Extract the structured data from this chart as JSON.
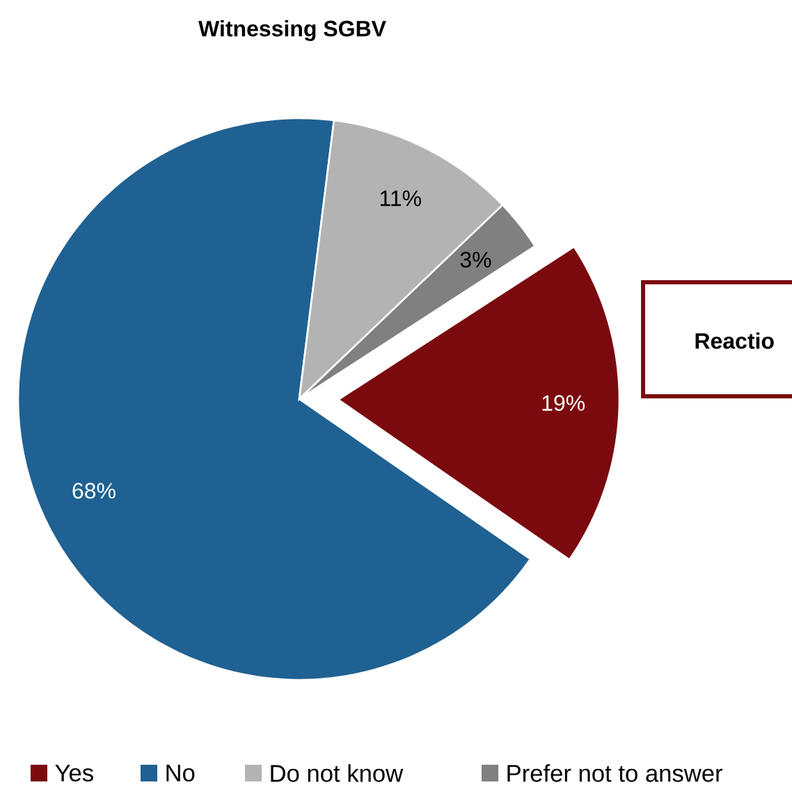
{
  "chart_data": {
    "type": "pie",
    "title": "Witnessing SGBV",
    "categories": [
      "Yes",
      "No",
      "Do not know",
      "Prefer not to answer"
    ],
    "values": [
      19,
      68,
      11,
      3
    ],
    "value_labels": [
      "19%",
      "68%",
      "11%",
      "3%"
    ],
    "colors": [
      "#7b0a0f",
      "#1f6192",
      "#b3b3b3",
      "#808080"
    ],
    "legend": "bottom",
    "annotations": [
      "Reactio"
    ]
  }
}
